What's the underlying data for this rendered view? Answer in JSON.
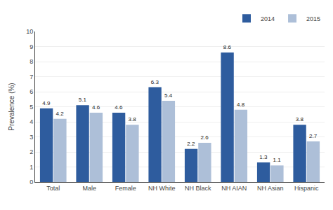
{
  "chart_data": {
    "type": "bar",
    "ylabel": "Prevalence (%)",
    "categories": [
      "Total",
      "Male",
      "Female",
      "NH White",
      "NH Black",
      "NH AIAN",
      "NH Asian",
      "Hispanic"
    ],
    "series": [
      {
        "name": "2014",
        "color": "#2E5C9E",
        "values": [
          4.9,
          5.1,
          4.6,
          6.3,
          2.2,
          8.6,
          1.3,
          3.8
        ]
      },
      {
        "name": "2015",
        "color": "#ADBFD8",
        "values": [
          4.2,
          4.6,
          3.8,
          5.4,
          2.6,
          4.8,
          1.1,
          2.7
        ]
      }
    ],
    "ylim": [
      0,
      10
    ],
    "yticks": [
      0,
      1,
      2,
      3,
      4,
      5,
      6,
      7,
      8,
      9,
      10
    ],
    "grid": true,
    "legend": "upper right",
    "data_labels": true
  }
}
